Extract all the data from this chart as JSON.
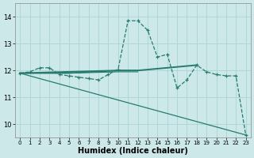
{
  "xlabel": "Humidex (Indice chaleur)",
  "x_values": [
    0,
    1,
    2,
    3,
    4,
    5,
    6,
    7,
    8,
    9,
    10,
    11,
    12,
    13,
    14,
    15,
    16,
    17,
    18,
    19,
    20,
    21,
    22,
    23
  ],
  "main_y": [
    11.9,
    11.95,
    12.1,
    12.1,
    11.85,
    11.8,
    11.75,
    11.7,
    11.65,
    11.85,
    12.05,
    13.85,
    13.85,
    13.5,
    12.5,
    12.6,
    11.35,
    11.65,
    12.2,
    11.95,
    11.85,
    11.8,
    11.8,
    9.6
  ],
  "flat_line1": {
    "x": [
      0,
      10,
      12,
      18
    ],
    "y": [
      11.9,
      12.0,
      12.0,
      12.2
    ]
  },
  "flat_line2": {
    "x": [
      0,
      5,
      10,
      12
    ],
    "y": [
      11.9,
      11.9,
      12.0,
      12.0
    ]
  },
  "flat_line3": {
    "x": [
      0,
      5,
      10,
      12
    ],
    "y": [
      11.9,
      11.9,
      11.95,
      11.95
    ]
  },
  "diag_line": {
    "x": [
      0,
      23
    ],
    "y": [
      11.9,
      9.6
    ]
  },
  "ylim": [
    9.5,
    14.5
  ],
  "xlim": [
    -0.5,
    23.5
  ],
  "yticks": [
    10,
    11,
    12,
    13,
    14
  ],
  "xticks": [
    0,
    1,
    2,
    3,
    4,
    5,
    6,
    7,
    8,
    9,
    10,
    11,
    12,
    13,
    14,
    15,
    16,
    17,
    18,
    19,
    20,
    21,
    22,
    23
  ],
  "bg_color": "#cce8e8",
  "grid_color": "#aad4d4",
  "line_color": "#267b6e"
}
